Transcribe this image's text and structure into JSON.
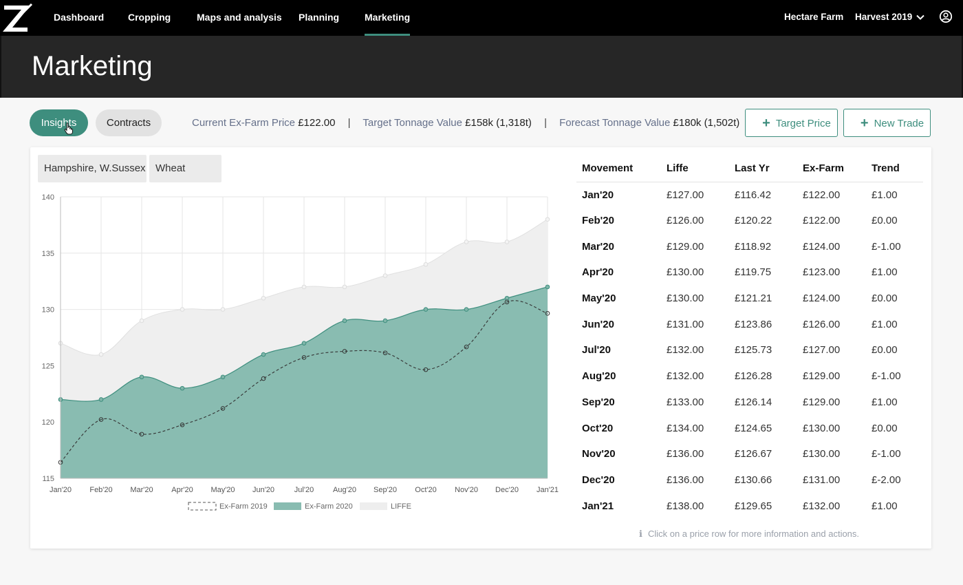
{
  "nav": {
    "items": [
      {
        "label": "Dashboard",
        "active": false
      },
      {
        "label": "Cropping",
        "active": false
      },
      {
        "label": "Maps and analysis",
        "active": false
      },
      {
        "label": "Planning",
        "active": false
      },
      {
        "label": "Marketing",
        "active": true
      }
    ],
    "farm": "Hectare Farm",
    "harvest": "Harvest 2019",
    "icons": {
      "logo": "z-logo-icon",
      "dropdown": "chevron-down-icon",
      "user": "user-circle-icon"
    }
  },
  "page": {
    "title": "Marketing"
  },
  "toolbar": {
    "insights_label": "Insights",
    "contracts_label": "Contracts",
    "stats": [
      {
        "label": "Current Ex-Farm Price",
        "value": "£122.00"
      },
      {
        "label": "Target Tonnage Value",
        "value": "£158k (1,318t)"
      },
      {
        "label": "Forecast Tonnage Value",
        "value": "£180k (1,502t)"
      }
    ],
    "separator": "|",
    "target_price_label": "Target Price",
    "new_trade_label": "New Trade"
  },
  "filters": {
    "region": "Hampshire, W.Sussex",
    "crop": "Wheat"
  },
  "colors": {
    "accent": "#3e8e7e",
    "exfarm2020_fill": "#89bcb1",
    "liffe_fill": "#efefef",
    "trend_up": "#3e8e7e",
    "trend_down": "#c0392b"
  },
  "chart_data": {
    "type": "area",
    "categories": [
      "Jan'20",
      "Feb'20",
      "Mar'20",
      "Apr'20",
      "May'20",
      "Jun'20",
      "Jul'20",
      "Aug'20",
      "Sep'20",
      "Oct'20",
      "Nov'20",
      "Dec'20",
      "Jan'21"
    ],
    "series": [
      {
        "name": "Ex-Farm 2019",
        "style": "dashed-line",
        "values": [
          116.42,
          120.22,
          118.92,
          119.75,
          121.21,
          123.86,
          125.73,
          126.28,
          126.14,
          124.65,
          126.67,
          130.66,
          129.65
        ]
      },
      {
        "name": "Ex-Farm 2020",
        "style": "filled-area",
        "values": [
          122,
          122,
          124,
          123,
          124,
          126,
          127,
          129,
          129,
          130,
          130,
          131,
          132
        ]
      },
      {
        "name": "LIFFE",
        "style": "filled-area",
        "values": [
          127,
          126,
          129,
          130,
          130,
          131,
          132,
          132,
          133,
          134,
          136,
          136,
          138
        ]
      }
    ],
    "yticks": [
      115,
      120,
      125,
      130,
      135,
      140
    ],
    "ylim": [
      115,
      140
    ],
    "grid": true,
    "legend": "bottom",
    "title": "",
    "xlabel": "",
    "ylabel": ""
  },
  "table": {
    "headers": [
      "Movement",
      "Liffe",
      "Last Yr",
      "Ex-Farm",
      "Trend"
    ],
    "rows": [
      {
        "month": "Jan'20",
        "liffe": "£127.00",
        "last_yr": "£116.42",
        "ex_farm": "£122.00",
        "trend": "£1.00",
        "dir": "up"
      },
      {
        "month": "Feb'20",
        "liffe": "£126.00",
        "last_yr": "£120.22",
        "ex_farm": "£122.00",
        "trend": "£0.00",
        "dir": "flat"
      },
      {
        "month": "Mar'20",
        "liffe": "£129.00",
        "last_yr": "£118.92",
        "ex_farm": "£124.00",
        "trend": "£-1.00",
        "dir": "down"
      },
      {
        "month": "Apr'20",
        "liffe": "£130.00",
        "last_yr": "£119.75",
        "ex_farm": "£123.00",
        "trend": "£1.00",
        "dir": "up"
      },
      {
        "month": "May'20",
        "liffe": "£130.00",
        "last_yr": "£121.21",
        "ex_farm": "£124.00",
        "trend": "£0.00",
        "dir": "flat"
      },
      {
        "month": "Jun'20",
        "liffe": "£131.00",
        "last_yr": "£123.86",
        "ex_farm": "£126.00",
        "trend": "£1.00",
        "dir": "up"
      },
      {
        "month": "Jul'20",
        "liffe": "£132.00",
        "last_yr": "£125.73",
        "ex_farm": "£127.00",
        "trend": "£0.00",
        "dir": "flat"
      },
      {
        "month": "Aug'20",
        "liffe": "£132.00",
        "last_yr": "£126.28",
        "ex_farm": "£129.00",
        "trend": "£-1.00",
        "dir": "down"
      },
      {
        "month": "Sep'20",
        "liffe": "£133.00",
        "last_yr": "£126.14",
        "ex_farm": "£129.00",
        "trend": "£1.00",
        "dir": "up"
      },
      {
        "month": "Oct'20",
        "liffe": "£134.00",
        "last_yr": "£124.65",
        "ex_farm": "£130.00",
        "trend": "£0.00",
        "dir": "flat"
      },
      {
        "month": "Nov'20",
        "liffe": "£136.00",
        "last_yr": "£126.67",
        "ex_farm": "£130.00",
        "trend": "£-1.00",
        "dir": "down"
      },
      {
        "month": "Dec'20",
        "liffe": "£136.00",
        "last_yr": "£130.66",
        "ex_farm": "£131.00",
        "trend": "£-2.00",
        "dir": "down"
      },
      {
        "month": "Jan'21",
        "liffe": "£138.00",
        "last_yr": "£129.65",
        "ex_farm": "£132.00",
        "trend": "£1.00",
        "dir": "up"
      }
    ]
  },
  "hint": {
    "icon": "info-icon",
    "glyph": "ℹ",
    "text": "Click on a price row for more information and actions."
  }
}
